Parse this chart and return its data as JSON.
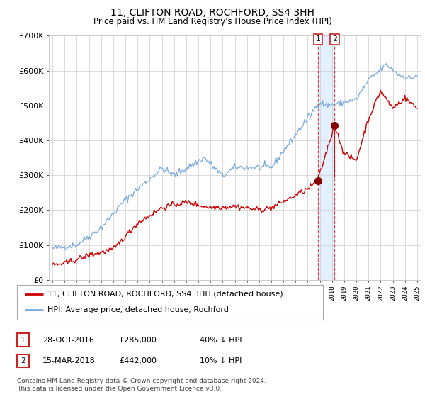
{
  "title": "11, CLIFTON ROAD, ROCHFORD, SS4 3HH",
  "subtitle": "Price paid vs. HM Land Registry's House Price Index (HPI)",
  "legend_line1": "11, CLIFTON ROAD, ROCHFORD, SS4 3HH (detached house)",
  "legend_line2": "HPI: Average price, detached house, Rochford",
  "transaction1_date": "28-OCT-2016",
  "transaction1_price": 285000,
  "transaction1_note": "40% ↓ HPI",
  "transaction2_date": "15-MAR-2018",
  "transaction2_price": 442000,
  "transaction2_note": "10% ↓ HPI",
  "footer": "Contains HM Land Registry data © Crown copyright and database right 2024.\nThis data is licensed under the Open Government Licence v3.0.",
  "hpi_color": "#7aaadd",
  "price_color": "#cc0000",
  "marker_color": "#880000",
  "dashed_line_color": "#dd4444",
  "band_color": "#ddeeff",
  "grid_color": "#cccccc",
  "background_color": "#ffffff",
  "ylim": [
    0,
    700000
  ],
  "yticks": [
    0,
    100000,
    200000,
    300000,
    400000,
    500000,
    600000,
    700000
  ],
  "ytick_labels": [
    "£0",
    "£100K",
    "£200K",
    "£300K",
    "£400K",
    "£500K",
    "£600K",
    "£700K"
  ],
  "year_start": 1995,
  "year_end": 2025,
  "transaction1_year": 2016.83,
  "transaction2_year": 2018.21
}
